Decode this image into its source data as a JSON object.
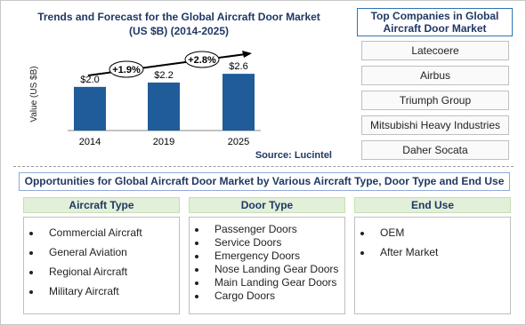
{
  "chart_data": {
    "type": "bar",
    "title": "Trends and Forecast for the Global  Aircraft Door Market",
    "subtitle": "(US $B) (2014-2025)",
    "ylabel": "Value (US $B)",
    "categories": [
      "2014",
      "2019",
      "2025"
    ],
    "values": [
      2.0,
      2.2,
      2.6
    ],
    "value_labels": [
      "$2.0",
      "$2.2",
      "$2.6"
    ],
    "color": "#1f5c99",
    "ylim": [
      0,
      3.5
    ],
    "annotations": [
      "+1.9%",
      "+2.8%"
    ],
    "source": "Source: Lucintel"
  },
  "companies": {
    "title": "Top Companies in Global Aircraft Door Market",
    "items": [
      "Latecoere",
      "Airbus",
      "Triumph Group",
      "Mitsubishi Heavy Industries",
      "Daher Socata"
    ]
  },
  "opportunities": {
    "title": "Opportunities for Global Aircraft Door Market by Various Aircraft Type, Door Type and End Use",
    "columns": [
      {
        "header": "Aircraft Type",
        "items": [
          "Commercial Aircraft",
          "General Aviation",
          "Regional Aircraft",
          "Military Aircraft"
        ]
      },
      {
        "header": "Door Type",
        "items": [
          "Passenger Doors",
          "Service Doors",
          "Emergency Doors",
          "Nose Landing Gear Doors",
          "Main Landing Gear Doors",
          "Cargo Doors"
        ]
      },
      {
        "header": "End Use",
        "items": [
          "OEM",
          "After Market"
        ]
      }
    ]
  }
}
